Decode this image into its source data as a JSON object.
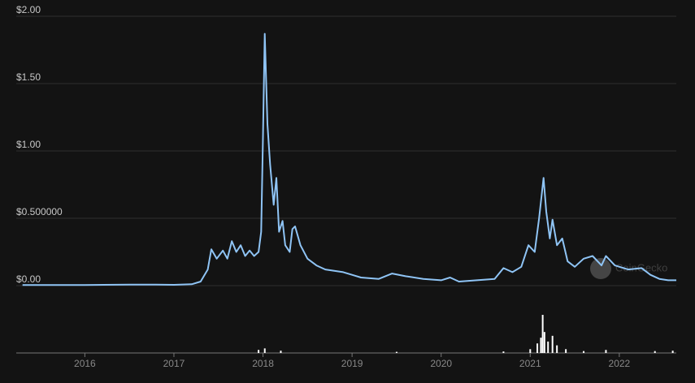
{
  "chart_data": [
    {
      "type": "line",
      "watermark": "CoinGecko",
      "color": "#8fc4f5",
      "grid": true,
      "xlim": [
        2015.23,
        2022.64
      ],
      "xticks": [
        2016,
        2017,
        2018,
        2019,
        2020,
        2021,
        2022
      ],
      "ylim": [
        0,
        2
      ],
      "yticks": [
        {
          "value": 0,
          "label": "$0.00"
        },
        {
          "value": 0.5,
          "label": "$0.500000"
        },
        {
          "value": 1,
          "label": "$1.00"
        },
        {
          "value": 1.5,
          "label": "$1.50"
        },
        {
          "value": 2,
          "label": "$2.00"
        }
      ],
      "x": [
        2015.3,
        2015.6,
        2016.0,
        2016.5,
        2016.8,
        2017.0,
        2017.2,
        2017.3,
        2017.38,
        2017.42,
        2017.48,
        2017.55,
        2017.6,
        2017.65,
        2017.7,
        2017.75,
        2017.8,
        2017.85,
        2017.9,
        2017.95,
        2017.98,
        2018.0,
        2018.02,
        2018.05,
        2018.08,
        2018.12,
        2018.15,
        2018.18,
        2018.22,
        2018.25,
        2018.3,
        2018.33,
        2018.36,
        2018.42,
        2018.5,
        2018.6,
        2018.7,
        2018.9,
        2019.0,
        2019.1,
        2019.3,
        2019.45,
        2019.6,
        2019.8,
        2020.0,
        2020.1,
        2020.2,
        2020.4,
        2020.6,
        2020.7,
        2020.8,
        2020.9,
        2020.98,
        2021.05,
        2021.1,
        2021.15,
        2021.18,
        2021.22,
        2021.25,
        2021.3,
        2021.36,
        2021.42,
        2021.5,
        2021.6,
        2021.7,
        2021.8,
        2021.85,
        2021.95,
        2022.1,
        2022.25,
        2022.35,
        2022.45,
        2022.55,
        2022.64
      ],
      "values": [
        0.004,
        0.004,
        0.004,
        0.008,
        0.007,
        0.006,
        0.01,
        0.03,
        0.12,
        0.27,
        0.2,
        0.26,
        0.2,
        0.33,
        0.25,
        0.3,
        0.22,
        0.26,
        0.22,
        0.25,
        0.4,
        1.1,
        1.87,
        1.2,
        0.9,
        0.6,
        0.8,
        0.4,
        0.48,
        0.3,
        0.25,
        0.42,
        0.44,
        0.3,
        0.2,
        0.15,
        0.12,
        0.1,
        0.08,
        0.06,
        0.05,
        0.09,
        0.07,
        0.05,
        0.04,
        0.06,
        0.03,
        0.04,
        0.05,
        0.13,
        0.1,
        0.14,
        0.3,
        0.25,
        0.5,
        0.8,
        0.55,
        0.35,
        0.49,
        0.3,
        0.35,
        0.18,
        0.14,
        0.2,
        0.22,
        0.15,
        0.22,
        0.15,
        0.12,
        0.13,
        0.08,
        0.05,
        0.04,
        0.04
      ]
    },
    {
      "type": "bar",
      "color": "#ffffff",
      "ylim": [
        0,
        100
      ],
      "x": [
        2017.95,
        2018.02,
        2018.2,
        2019.5,
        2020.7,
        2021.0,
        2021.08,
        2021.12,
        2021.14,
        2021.16,
        2021.2,
        2021.25,
        2021.3,
        2021.4,
        2021.6,
        2021.85,
        2022.4,
        2022.6
      ],
      "values": [
        8,
        12,
        6,
        3,
        4,
        10,
        25,
        40,
        100,
        55,
        30,
        45,
        20,
        10,
        5,
        8,
        5,
        6
      ]
    }
  ]
}
